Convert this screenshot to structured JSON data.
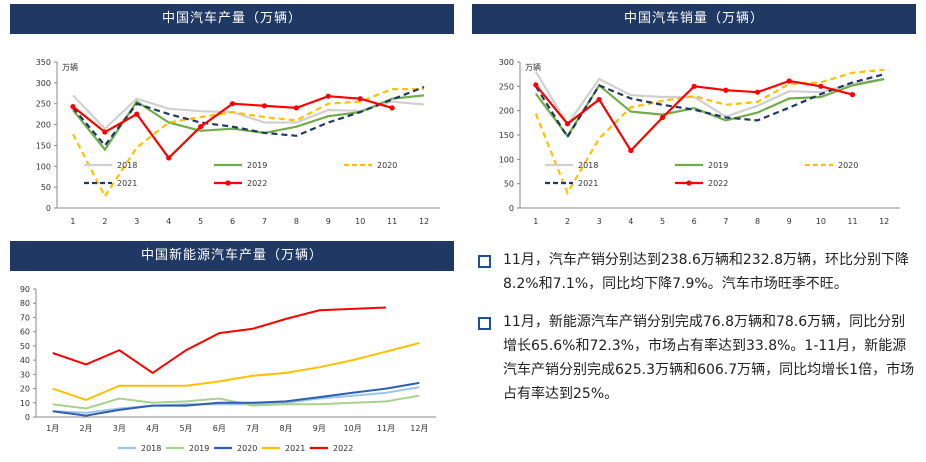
{
  "panels": {
    "production_title": "中国汽车产量（万辆）",
    "sales_title": "中国汽车销量（万辆）",
    "nev_title": "中国新能源汽车产量（万辆）"
  },
  "bullets": [
    "11月，汽车产销分别达到238.6万辆和232.8万辆，环比分别下降8.2%和7.1%，同比均下降7.9%。汽车市场旺季不旺。",
    "11月，新能源汽车产销分别完成76.8万辆和78.6万辆，同比分别增长65.6%和72.3%，市场占有率达到33.8%。1-11月，新能源汽车产销分别完成625.3万辆和606.7万辆，同比均增长1倍，市场占有率达到25%。"
  ],
  "chart_data": [
    {
      "type": "line",
      "title": "中国汽车产量（万辆）",
      "unit": "万辆",
      "categories": [
        "1",
        "2",
        "3",
        "4",
        "5",
        "6",
        "7",
        "8",
        "9",
        "10",
        "11",
        "12"
      ],
      "ylim": [
        0,
        350
      ],
      "yticks": [
        0,
        50,
        100,
        150,
        200,
        250,
        300,
        350
      ],
      "legend": "bottom",
      "series": [
        {
          "name": "2018",
          "color": "#d0d0d0",
          "dash": "solid",
          "marker": false,
          "values": [
            270,
            190,
            262,
            238,
            232,
            230,
            205,
            205,
            235,
            233,
            255,
            248
          ]
        },
        {
          "name": "2019",
          "color": "#70ad47",
          "dash": "solid",
          "marker": false,
          "values": [
            235,
            140,
            255,
            205,
            185,
            190,
            180,
            195,
            220,
            230,
            262,
            270
          ]
        },
        {
          "name": "2020",
          "color": "#ffc000",
          "dash": "dashed",
          "marker": false,
          "values": [
            177,
            28,
            145,
            205,
            218,
            230,
            218,
            210,
            250,
            255,
            285,
            285
          ]
        },
        {
          "name": "2021",
          "color": "#1f3864",
          "dash": "dashed",
          "marker": false,
          "values": [
            240,
            150,
            250,
            225,
            205,
            195,
            180,
            173,
            205,
            230,
            260,
            290
          ]
        },
        {
          "name": "2022",
          "color": "#ff0000",
          "dash": "solid",
          "marker": true,
          "values": [
            243,
            182,
            225,
            120,
            195,
            250,
            245,
            240,
            268,
            262,
            240,
            null
          ]
        }
      ]
    },
    {
      "type": "line",
      "title": "中国汽车销量（万辆）",
      "unit": "万辆",
      "categories": [
        "1",
        "2",
        "3",
        "4",
        "5",
        "6",
        "7",
        "8",
        "9",
        "10",
        "11",
        "12"
      ],
      "ylim": [
        0,
        300
      ],
      "yticks": [
        0,
        50,
        100,
        150,
        200,
        250,
        300
      ],
      "legend": "bottom",
      "series": [
        {
          "name": "2018",
          "color": "#d0d0d0",
          "dash": "solid",
          "marker": false,
          "values": [
            280,
            172,
            265,
            232,
            228,
            228,
            188,
            210,
            240,
            238,
            255,
            265
          ]
        },
        {
          "name": "2019",
          "color": "#70ad47",
          "dash": "solid",
          "marker": false,
          "values": [
            235,
            148,
            252,
            198,
            192,
            205,
            180,
            196,
            225,
            228,
            252,
            265
          ]
        },
        {
          "name": "2020",
          "color": "#ffc000",
          "dash": "dashed",
          "marker": false,
          "values": [
            194,
            31,
            143,
            207,
            220,
            230,
            212,
            218,
            255,
            258,
            278,
            284
          ]
        },
        {
          "name": "2021",
          "color": "#1f3864",
          "dash": "dashed",
          "marker": false,
          "values": [
            250,
            146,
            252,
            225,
            212,
            202,
            186,
            180,
            206,
            234,
            258,
            275
          ]
        },
        {
          "name": "2022",
          "color": "#ff0000",
          "dash": "solid",
          "marker": true,
          "values": [
            253,
            173,
            223,
            118,
            186,
            250,
            242,
            238,
            261,
            250,
            233,
            null
          ]
        }
      ]
    },
    {
      "type": "line",
      "title": "中国新能源汽车产量（万辆）",
      "categories": [
        "1月",
        "2月",
        "3月",
        "4月",
        "5月",
        "6月",
        "7月",
        "8月",
        "9月",
        "10月",
        "11月",
        "12月"
      ],
      "ylim": [
        0,
        90
      ],
      "yticks": [
        0,
        10,
        20,
        30,
        40,
        50,
        60,
        70,
        80,
        90
      ],
      "legend": "bottom",
      "series": [
        {
          "name": "2018",
          "color": "#9dc3e6",
          "dash": "solid",
          "marker": false,
          "values": [
            4,
            3,
            6,
            8,
            9,
            9,
            9,
            10,
            13,
            15,
            17,
            21
          ]
        },
        {
          "name": "2019",
          "color": "#a9d18e",
          "dash": "solid",
          "marker": false,
          "values": [
            9,
            6,
            13,
            10,
            11,
            13,
            8,
            9,
            9,
            10,
            11,
            15
          ]
        },
        {
          "name": "2020",
          "color": "#2e5fae",
          "dash": "solid",
          "marker": false,
          "values": [
            4,
            1,
            5,
            8,
            8,
            10,
            10,
            11,
            14,
            17,
            20,
            24
          ]
        },
        {
          "name": "2021",
          "color": "#ffc000",
          "dash": "solid",
          "marker": false,
          "values": [
            20,
            12,
            22,
            22,
            22,
            25,
            29,
            31,
            35,
            40,
            46,
            52
          ]
        },
        {
          "name": "2022",
          "color": "#ff0000",
          "dash": "solid",
          "marker": false,
          "values": [
            45,
            37,
            47,
            31,
            47,
            59,
            62,
            69,
            75,
            76,
            77,
            null
          ]
        }
      ]
    }
  ]
}
